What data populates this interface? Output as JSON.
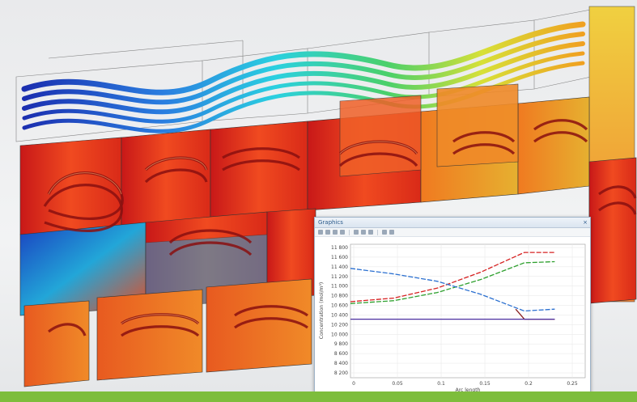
{
  "window": {
    "title": "Graphics",
    "toolbar_icons": [
      "zoom-in-icon",
      "zoom-out-icon",
      "zoom-box-icon",
      "zoom-extents-icon",
      "pan-icon",
      "grid-icon",
      "legend-icon",
      "export-icon",
      "image-icon"
    ]
  },
  "colors": {
    "accent_bar": "#7dbd3c",
    "hot": "#e23b1f",
    "cold": "#1f3fbf"
  },
  "chart_data": {
    "type": "line",
    "xlabel": "Arc length",
    "ylabel": "Concentration (mol/m³)",
    "xlim": [
      0,
      0.27
    ],
    "ylim": [
      8100,
      11700
    ],
    "x_ticks": [
      "0",
      "0.05",
      "0.1",
      "0.15",
      "0.2",
      "0.25"
    ],
    "y_ticks": [
      "8 200",
      "8 400",
      "8 600",
      "9 800",
      "10 000",
      "10 200",
      "10 400",
      "10 600",
      "10 800",
      "11 000",
      "11 200",
      "11 400",
      "11 600",
      "11 800"
    ],
    "series": [
      {
        "color": "#d62020",
        "dash": true,
        "x": [
          0.0,
          0.05,
          0.1,
          0.15,
          0.2,
          0.235
        ],
        "y": [
          10150,
          10250,
          10520,
          10950,
          11480,
          11480
        ]
      },
      {
        "color": "#2ea02e",
        "dash": true,
        "x": [
          0.0,
          0.05,
          0.1,
          0.15,
          0.2,
          0.235
        ],
        "y": [
          10100,
          10180,
          10400,
          10750,
          11200,
          11230
        ]
      },
      {
        "color": "#2a6fd0",
        "dash": true,
        "x": [
          0.0,
          0.05,
          0.1,
          0.15,
          0.2,
          0.235
        ],
        "y": [
          11050,
          10900,
          10700,
          10350,
          9900,
          9950
        ]
      },
      {
        "color": "#8a2020",
        "dash": false,
        "x": [
          0.19,
          0.2,
          0.235
        ],
        "y": [
          9950,
          9680,
          9680
        ]
      },
      {
        "color": "#4b2fa0",
        "dash": false,
        "x": [
          0.0,
          0.05,
          0.1,
          0.15,
          0.2,
          0.235
        ],
        "y": [
          9680,
          9680,
          9680,
          9680,
          9680,
          9680
        ]
      }
    ]
  }
}
